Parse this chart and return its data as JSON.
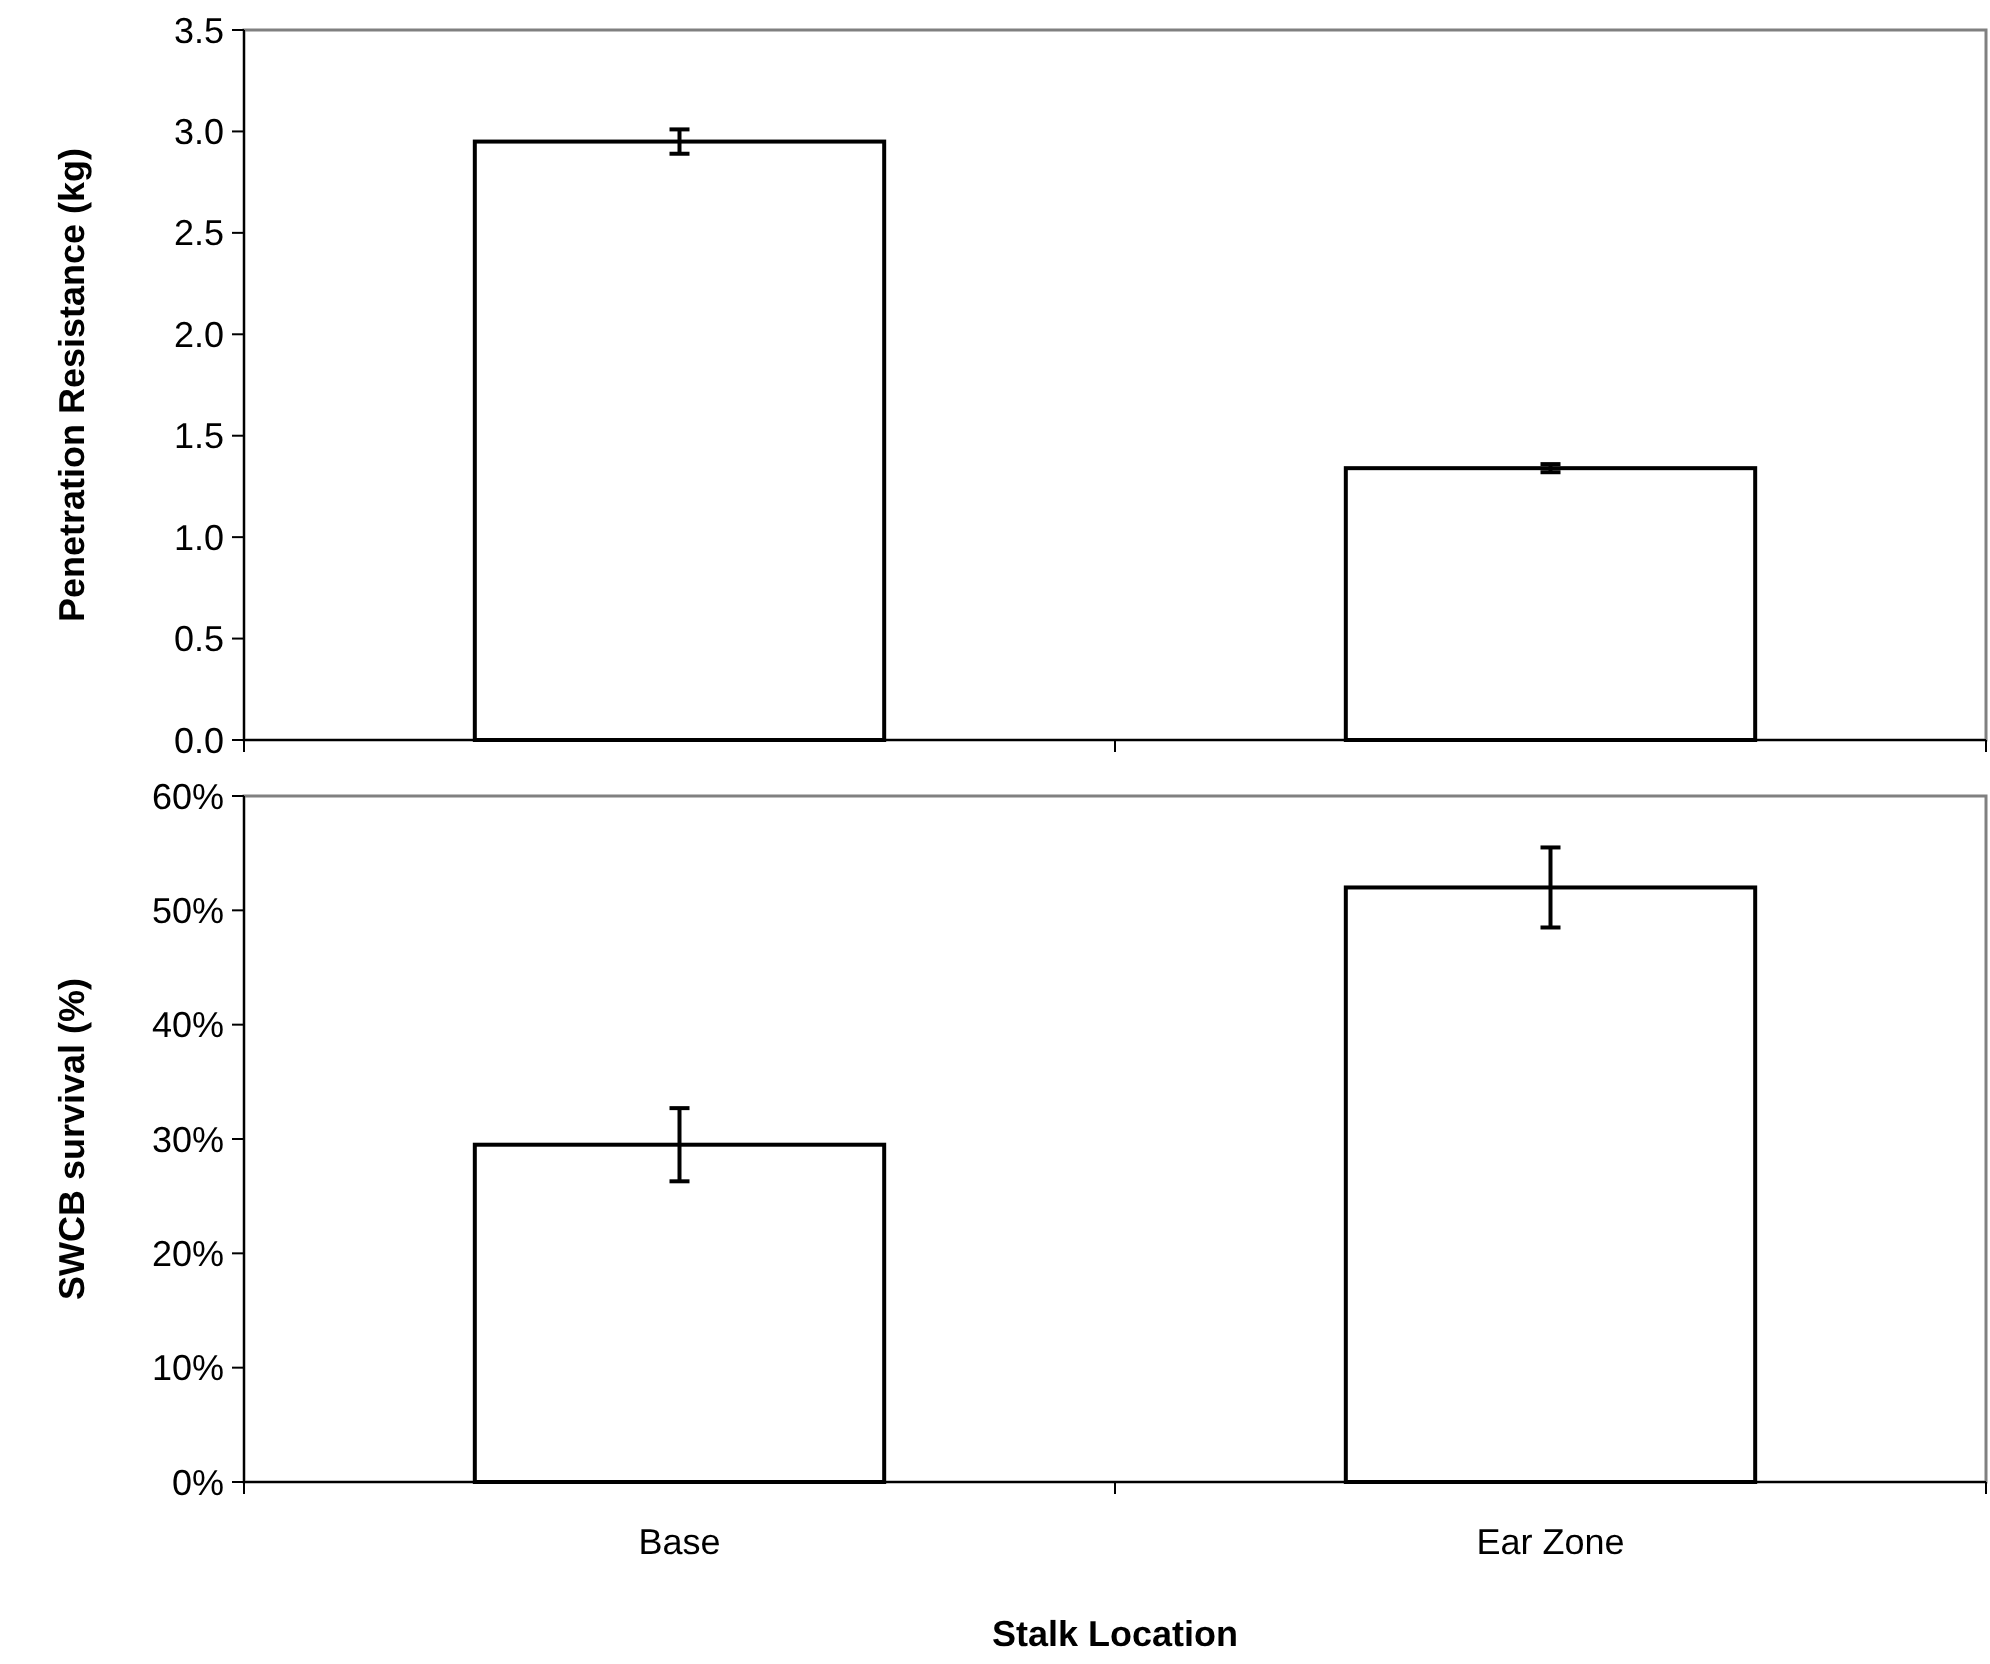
{
  "chart_data": [
    {
      "type": "bar",
      "ylabel": "Penetration Resistance (kg)",
      "categories": [
        null,
        null
      ],
      "values": [
        2.95,
        1.34
      ],
      "errors": [
        0.06,
        0.02
      ],
      "color": "#ffffff",
      "ylim": [
        0,
        3.5
      ],
      "yticks": [
        {
          "value": 0,
          "label": "0.0"
        },
        {
          "value": 0.5,
          "label": "0.5"
        },
        {
          "value": 1,
          "label": "1.0"
        },
        {
          "value": 1.5,
          "label": "1.5"
        },
        {
          "value": 2,
          "label": "2.0"
        },
        {
          "value": 2.5,
          "label": "2.5"
        },
        {
          "value": 3,
          "label": "3.0"
        },
        {
          "value": 3.5,
          "label": "3.5"
        }
      ],
      "tick_labels": "y",
      "grid": false
    },
    {
      "type": "bar",
      "ylabel": "SWCB survival (%)",
      "xlabel": "Stalk Location",
      "categories": [
        "Base",
        "Ear Zone"
      ],
      "values": [
        29.5,
        52
      ],
      "errors": [
        3.2,
        3.5
      ],
      "color": "#ffffff",
      "ylim": [
        0,
        60
      ],
      "yticks": [
        {
          "value": 0,
          "label": "0%"
        },
        {
          "value": 10,
          "label": "10%"
        },
        {
          "value": 20,
          "label": "20%"
        },
        {
          "value": 30,
          "label": "30%"
        },
        {
          "value": 40,
          "label": "40%"
        },
        {
          "value": 50,
          "label": "50%"
        },
        {
          "value": 60,
          "label": "60%"
        }
      ],
      "grid": false
    }
  ]
}
